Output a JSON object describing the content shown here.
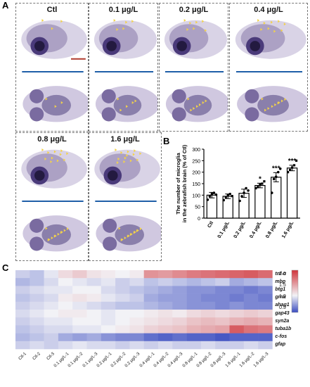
{
  "panel_letters": {
    "a": "A",
    "b": "B",
    "c": "C"
  },
  "panel_a": {
    "groups": [
      "Ctl",
      "0.1 μg/L",
      "0.2 μg/L",
      "0.4 μg/L",
      "0.8 μg/L",
      "1.6 μg/L"
    ],
    "marker_color": "#f2d24a",
    "stain_color": "#4a3a7a",
    "divider_color": "#1f5fa8",
    "scalebar_color": "#b03a2e"
  },
  "chart_data": {
    "type": "bar",
    "ylabel": "The number of microglia in the zebrafish brain (% of Ctl)",
    "categories": [
      "Ctl",
      "0.1 μg/L",
      "0.2 μg/L",
      "0.4 μg/L",
      "0.8 μg/L",
      "1.6 μg/L"
    ],
    "values": [
      100,
      95,
      108,
      142,
      178,
      218
    ],
    "errors": [
      12,
      10,
      18,
      10,
      20,
      12
    ],
    "significance": [
      "",
      "",
      "",
      "*",
      "***",
      "***"
    ],
    "ylim": [
      0,
      300
    ],
    "yticks": [
      0,
      50,
      100,
      150,
      200,
      250,
      300
    ],
    "points": [
      [
        80,
        95,
        105,
        110,
        102
      ],
      [
        78,
        90,
        100,
        105,
        96
      ],
      [
        75,
        95,
        110,
        130,
        120
      ],
      [
        130,
        135,
        145,
        150,
        160
      ],
      [
        110,
        170,
        180,
        200,
        215
      ],
      [
        200,
        210,
        220,
        230,
        250
      ]
    ],
    "grid": false,
    "legend": "none"
  },
  "heatmap": {
    "rows": [
      "tnf-α",
      "mbp",
      "btg1",
      "grna",
      "ahag1",
      "gap43",
      "syn2a",
      "tuba1b",
      "c-fos",
      "gfap"
    ],
    "cols": [
      "Ctl-1",
      "Ctl-2",
      "Ctl-3",
      "0.1 μg/L-1",
      "0.1 μg/L-2",
      "0.1 μg/L-3",
      "0.2 μg/L-1",
      "0.2 μg/L-2",
      "0.2 μg/L-3",
      "0.4 μg/L-1",
      "0.4 μg/L-2",
      "0.4 μg/L-3",
      "0.8 μg/L-1",
      "0.8 μg/L-2",
      "0.8 μg/L-3",
      "1.6 μg/L-1",
      "1.6 μg/L-2",
      "1.6 μg/L-3"
    ],
    "colorbar_ticks": [
      "2.0",
      "1.5",
      "1.0",
      "0.5"
    ],
    "vmin": 0.3,
    "vmax": 2.2,
    "values": [
      [
        0.85,
        0.8,
        0.95,
        1.15,
        1.25,
        1.1,
        1.05,
        1.0,
        1.05,
        1.6,
        1.55,
        1.65,
        1.75,
        1.8,
        1.85,
        1.9,
        1.95,
        1.85
      ],
      [
        0.75,
        0.8,
        0.9,
        1.0,
        0.95,
        0.9,
        0.95,
        0.85,
        0.9,
        0.8,
        0.85,
        0.8,
        0.75,
        0.8,
        0.85,
        0.7,
        0.75,
        0.8
      ],
      [
        0.85,
        0.9,
        0.95,
        0.95,
        1.0,
        1.0,
        0.9,
        0.85,
        0.8,
        0.75,
        0.7,
        0.65,
        0.6,
        0.6,
        0.55,
        0.55,
        0.5,
        0.55
      ],
      [
        0.8,
        0.85,
        0.9,
        1.05,
        1.1,
        1.05,
        0.95,
        0.9,
        0.85,
        0.7,
        0.65,
        0.65,
        0.6,
        0.55,
        0.55,
        0.5,
        0.55,
        0.5
      ],
      [
        0.85,
        0.9,
        0.95,
        1.0,
        0.95,
        0.9,
        0.85,
        0.8,
        0.8,
        0.75,
        0.7,
        0.65,
        0.6,
        0.6,
        0.55,
        0.6,
        0.55,
        0.55
      ],
      [
        0.9,
        0.95,
        1.0,
        1.05,
        1.05,
        1.0,
        0.95,
        1.0,
        1.0,
        1.05,
        1.1,
        1.05,
        1.15,
        1.2,
        1.15,
        1.2,
        1.25,
        1.2
      ],
      [
        0.85,
        0.9,
        0.95,
        0.95,
        1.0,
        1.0,
        0.95,
        1.0,
        1.05,
        1.1,
        1.15,
        1.2,
        1.3,
        1.35,
        1.3,
        1.4,
        1.45,
        1.4
      ],
      [
        0.8,
        0.85,
        0.9,
        0.9,
        0.95,
        0.95,
        1.0,
        1.05,
        1.1,
        1.2,
        1.25,
        1.3,
        1.4,
        1.45,
        1.5,
        1.95,
        1.8,
        1.75
      ],
      [
        0.75,
        0.8,
        0.85,
        0.7,
        0.65,
        0.7,
        0.6,
        0.55,
        0.55,
        0.45,
        0.4,
        0.45,
        0.4,
        0.4,
        0.35,
        0.4,
        0.4,
        0.4
      ],
      [
        0.85,
        0.9,
        0.85,
        0.9,
        0.95,
        0.9,
        0.9,
        0.85,
        0.9,
        0.85,
        0.9,
        0.85,
        0.85,
        0.9,
        0.85,
        0.85,
        0.9,
        0.85
      ]
    ]
  }
}
